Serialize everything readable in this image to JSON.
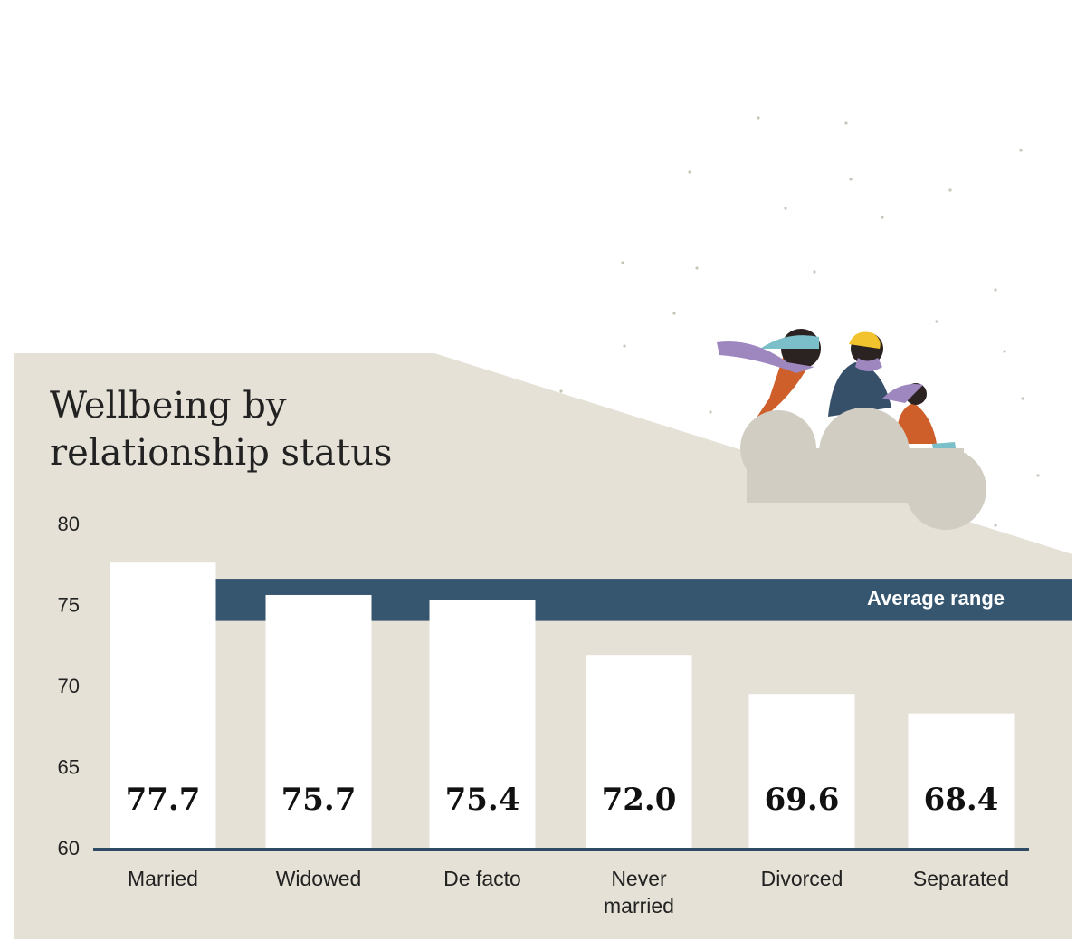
{
  "chart_data": {
    "type": "bar",
    "title": "Wellbeing by relationship status",
    "categories": [
      "Married",
      "Widowed",
      "De facto",
      "Never married",
      "Divorced",
      "Separated"
    ],
    "values": [
      77.7,
      75.7,
      75.4,
      72.0,
      69.6,
      68.4
    ],
    "value_labels": [
      "77.7",
      "75.7",
      "75.4",
      "72.0",
      "69.6",
      "68.4"
    ],
    "color": "#ffffff",
    "ylim": [
      60,
      80
    ],
    "yticks": [
      60,
      65,
      70,
      75,
      80
    ],
    "band": {
      "label": "Average range",
      "range": [
        74.1,
        76.7
      ],
      "color": "#36556f"
    }
  }
}
